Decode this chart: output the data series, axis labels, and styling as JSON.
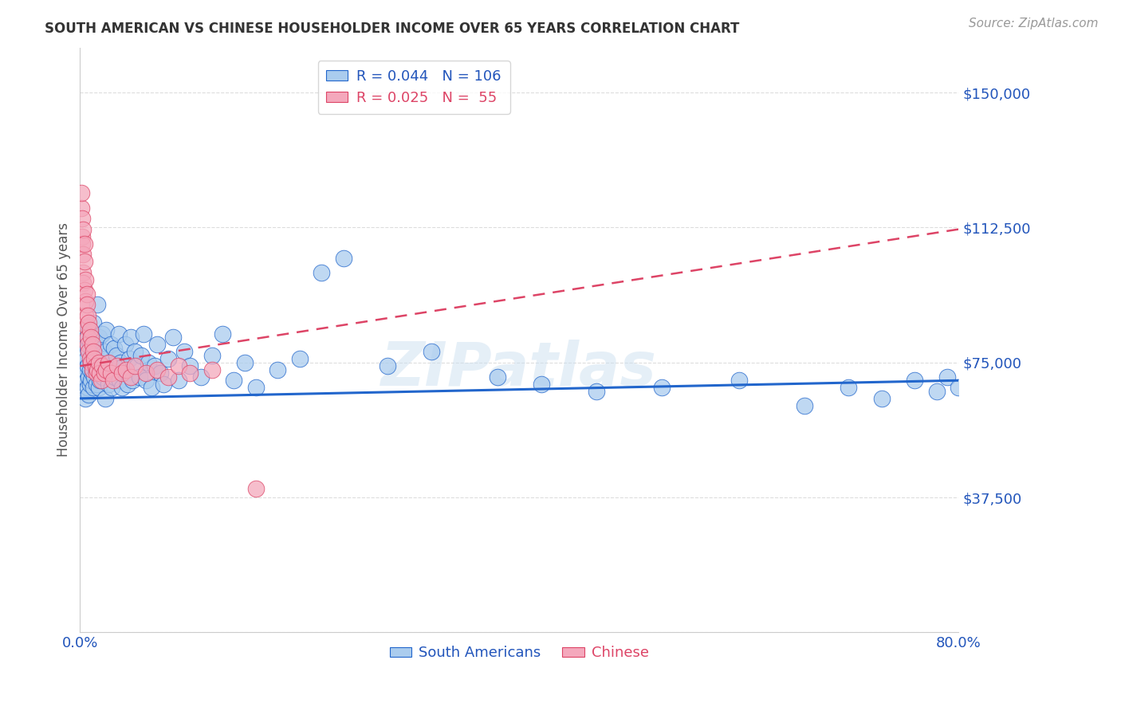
{
  "title": "SOUTH AMERICAN VS CHINESE HOUSEHOLDER INCOME OVER 65 YEARS CORRELATION CHART",
  "source": "Source: ZipAtlas.com",
  "ylabel": "Householder Income Over 65 years",
  "xlim": [
    0.0,
    0.8
  ],
  "ylim": [
    0,
    162500
  ],
  "yticks": [
    0,
    37500,
    75000,
    112500,
    150000
  ],
  "ytick_labels": [
    "",
    "$37,500",
    "$75,000",
    "$112,500",
    "$150,000"
  ],
  "xticks": [
    0.0,
    0.8
  ],
  "xtick_labels": [
    "0.0%",
    "80.0%"
  ],
  "watermark": "ZIPatlas",
  "legend_blue_R": "0.044",
  "legend_blue_N": "106",
  "legend_pink_R": "0.025",
  "legend_pink_N": "55",
  "blue_color": "#aaccee",
  "pink_color": "#f4a8bc",
  "line_blue_color": "#2266cc",
  "line_pink_color": "#dd4466",
  "title_color": "#333333",
  "axis_label_color": "#555555",
  "tick_label_color": "#2255bb",
  "grid_color": "#dddddd",
  "blue_scatter_x": [
    0.002,
    0.003,
    0.003,
    0.004,
    0.004,
    0.005,
    0.005,
    0.005,
    0.006,
    0.006,
    0.006,
    0.007,
    0.007,
    0.007,
    0.008,
    0.008,
    0.008,
    0.009,
    0.009,
    0.009,
    0.01,
    0.01,
    0.01,
    0.011,
    0.011,
    0.012,
    0.012,
    0.013,
    0.013,
    0.014,
    0.014,
    0.015,
    0.015,
    0.016,
    0.016,
    0.017,
    0.017,
    0.018,
    0.018,
    0.019,
    0.02,
    0.021,
    0.022,
    0.023,
    0.024,
    0.025,
    0.026,
    0.027,
    0.028,
    0.029,
    0.03,
    0.031,
    0.032,
    0.033,
    0.035,
    0.036,
    0.037,
    0.038,
    0.04,
    0.041,
    0.042,
    0.043,
    0.045,
    0.046,
    0.048,
    0.05,
    0.052,
    0.054,
    0.056,
    0.058,
    0.06,
    0.062,
    0.065,
    0.068,
    0.07,
    0.073,
    0.076,
    0.08,
    0.085,
    0.09,
    0.095,
    0.1,
    0.11,
    0.12,
    0.13,
    0.14,
    0.15,
    0.16,
    0.18,
    0.2,
    0.22,
    0.24,
    0.28,
    0.32,
    0.38,
    0.42,
    0.47,
    0.53,
    0.6,
    0.66,
    0.7,
    0.73,
    0.76,
    0.78,
    0.79,
    0.8
  ],
  "blue_scatter_y": [
    72000,
    68000,
    75000,
    80000,
    71000,
    77000,
    73000,
    65000,
    82000,
    70000,
    76000,
    68000,
    74000,
    79000,
    85000,
    71000,
    66000,
    80000,
    73000,
    69000,
    75000,
    83000,
    70000,
    78000,
    72000,
    68000,
    86000,
    74000,
    71000,
    80000,
    77000,
    73000,
    69000,
    91000,
    75000,
    82000,
    68000,
    74000,
    70000,
    76000,
    83000,
    71000,
    78000,
    65000,
    84000,
    72000,
    69000,
    75000,
    80000,
    68000,
    73000,
    79000,
    71000,
    77000,
    83000,
    70000,
    75000,
    68000,
    74000,
    80000,
    72000,
    69000,
    76000,
    82000,
    70000,
    78000,
    74000,
    71000,
    77000,
    83000,
    70000,
    75000,
    68000,
    74000,
    80000,
    72000,
    69000,
    76000,
    82000,
    70000,
    78000,
    74000,
    71000,
    77000,
    83000,
    70000,
    75000,
    68000,
    73000,
    76000,
    100000,
    104000,
    74000,
    78000,
    71000,
    69000,
    67000,
    68000,
    70000,
    63000,
    68000,
    65000,
    70000,
    67000,
    71000,
    68000
  ],
  "pink_scatter_x": [
    0.001,
    0.001,
    0.002,
    0.002,
    0.002,
    0.003,
    0.003,
    0.003,
    0.003,
    0.004,
    0.004,
    0.004,
    0.005,
    0.005,
    0.005,
    0.006,
    0.006,
    0.006,
    0.007,
    0.007,
    0.007,
    0.008,
    0.008,
    0.009,
    0.009,
    0.01,
    0.01,
    0.011,
    0.011,
    0.012,
    0.013,
    0.014,
    0.015,
    0.016,
    0.017,
    0.018,
    0.019,
    0.02,
    0.022,
    0.024,
    0.026,
    0.028,
    0.03,
    0.034,
    0.038,
    0.042,
    0.046,
    0.05,
    0.06,
    0.07,
    0.08,
    0.09,
    0.1,
    0.12,
    0.16
  ],
  "pink_scatter_y": [
    118000,
    122000,
    110000,
    115000,
    108000,
    105000,
    112000,
    100000,
    97000,
    103000,
    95000,
    108000,
    92000,
    98000,
    88000,
    94000,
    85000,
    91000,
    82000,
    88000,
    80000,
    86000,
    78000,
    84000,
    76000,
    82000,
    75000,
    80000,
    73000,
    78000,
    76000,
    74000,
    72000,
    73000,
    75000,
    72000,
    70000,
    74000,
    72000,
    73000,
    75000,
    72000,
    70000,
    74000,
    72000,
    73000,
    71000,
    74000,
    72000,
    73000,
    71000,
    74000,
    72000,
    73000,
    40000
  ],
  "blue_line_x": [
    0.0,
    0.8
  ],
  "blue_line_y": [
    65000,
    70000
  ],
  "pink_line_x": [
    0.0,
    0.8
  ],
  "pink_line_y": [
    74000,
    112000
  ]
}
